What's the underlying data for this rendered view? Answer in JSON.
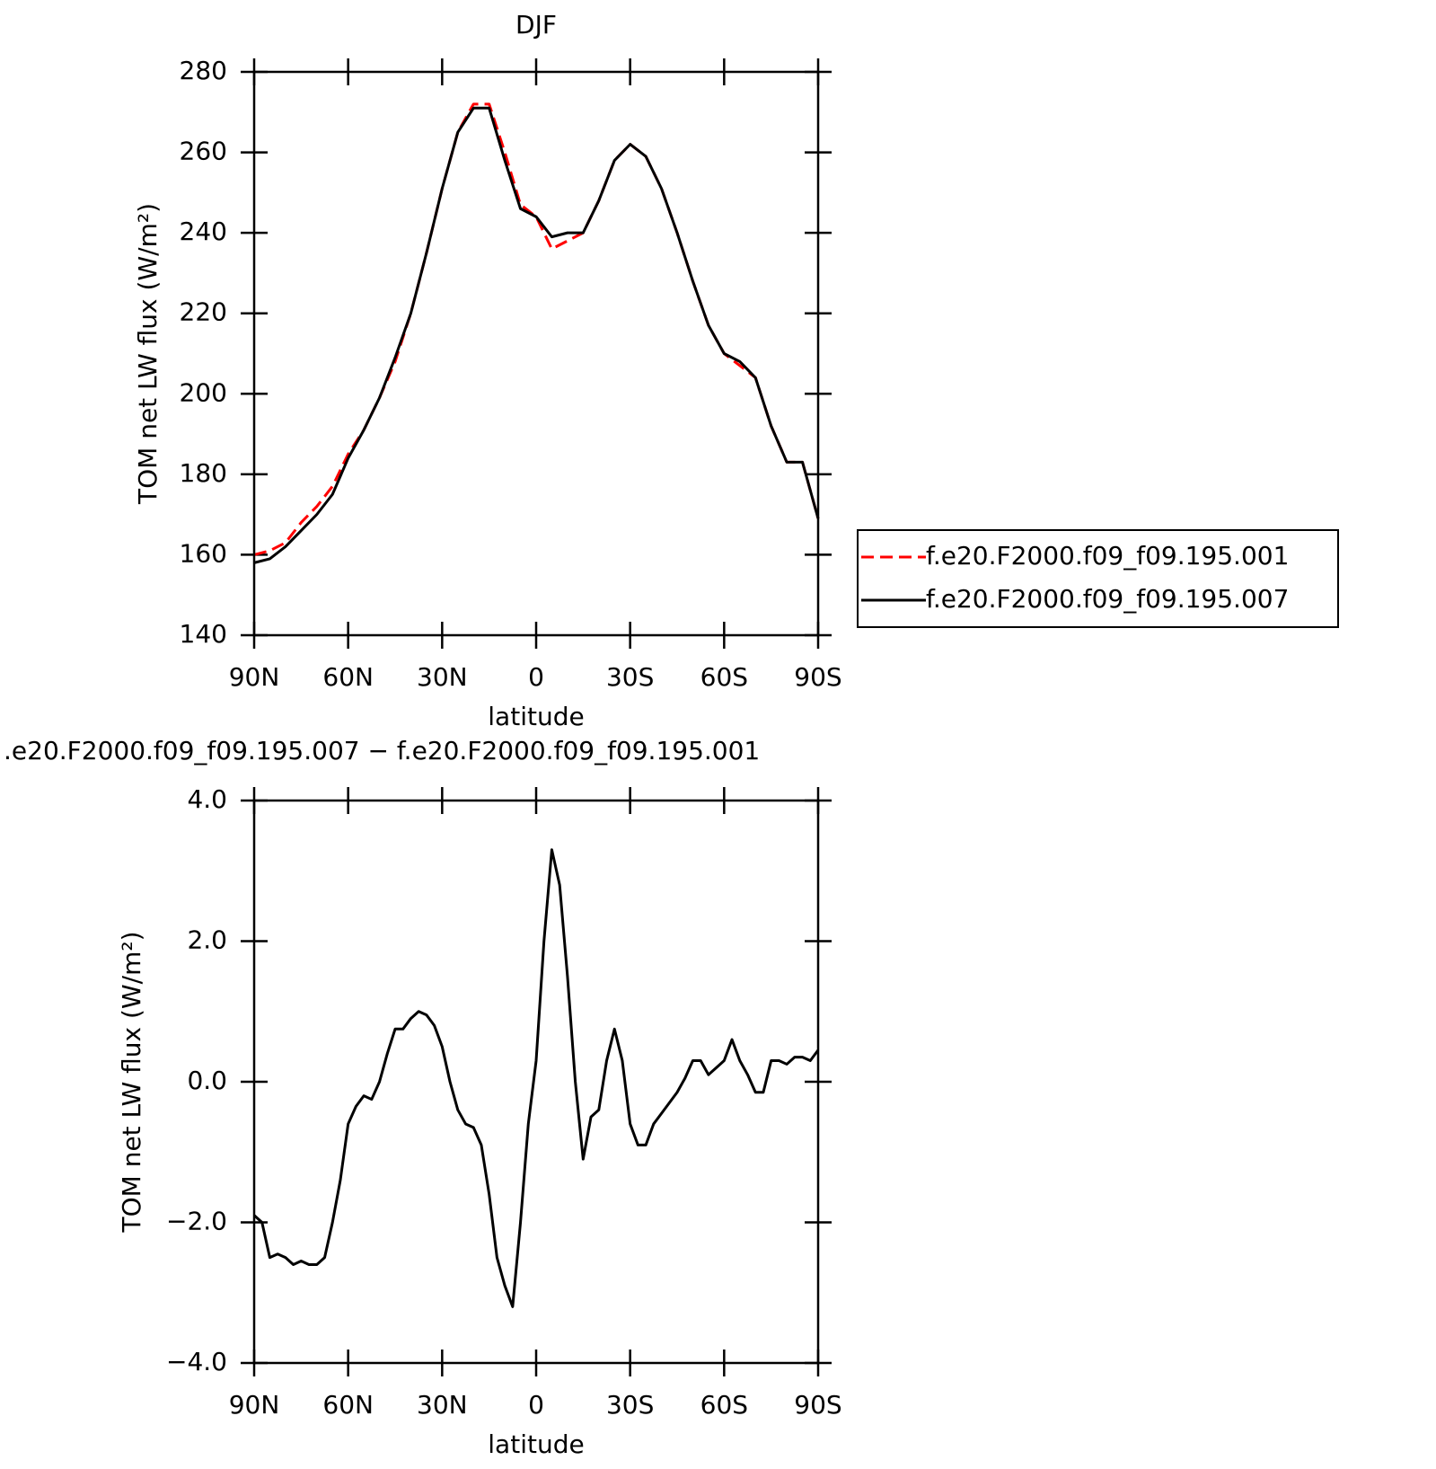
{
  "chart_data": [
    {
      "type": "line",
      "title": "DJF",
      "xlabel": "latitude",
      "ylabel": "TOM net LW flux (W/m²)",
      "x": [
        90,
        85,
        80,
        75,
        70,
        65,
        60,
        55,
        50,
        45,
        40,
        35,
        30,
        25,
        20,
        15,
        10,
        5,
        0,
        -5,
        -10,
        -15,
        -20,
        -25,
        -30,
        -35,
        -40,
        -45,
        -50,
        -55,
        -60,
        -65,
        -70,
        -75,
        -80,
        -85,
        -90
      ],
      "series": [
        {
          "name": "f.e20.F2000.f09_f09.195.001",
          "color": "#ff0000",
          "line_style": "dashed",
          "values": [
            160,
            161,
            163,
            168,
            172,
            177,
            185,
            191,
            199,
            208,
            220,
            235,
            251,
            265,
            272,
            272,
            260,
            247,
            244,
            236,
            238,
            240,
            248,
            258,
            262,
            259,
            251,
            240,
            228,
            217,
            210,
            207,
            204,
            192,
            183,
            183,
            169
          ]
        },
        {
          "name": "f.e20.F2000.f09_f09.195.007",
          "color": "#000000",
          "line_style": "solid",
          "values": [
            158,
            159,
            162,
            166,
            170,
            175,
            184,
            191,
            199,
            209,
            220,
            235,
            251,
            265,
            271,
            271,
            258,
            246,
            244,
            239,
            240,
            240,
            248,
            258,
            262,
            259,
            251,
            240,
            228,
            217,
            210,
            208,
            204,
            192,
            183,
            183,
            169
          ]
        }
      ],
      "xlim": [
        90,
        -90
      ],
      "xticks": [
        {
          "value": 90,
          "label": "90N"
        },
        {
          "value": 60,
          "label": "60N"
        },
        {
          "value": 30,
          "label": "30N"
        },
        0,
        {
          "value": -30,
          "label": "30S"
        },
        {
          "value": -60,
          "label": "60S"
        },
        {
          "value": -90,
          "label": "90S"
        }
      ],
      "ylim": [
        140,
        280
      ],
      "yticks": [
        140,
        160,
        180,
        200,
        220,
        240,
        260,
        280
      ],
      "legend": "right"
    },
    {
      "type": "line",
      "title": ".e20.F2000.f09_f09.195.007 − f.e20.F2000.f09_f09.195.001",
      "xlabel": "latitude",
      "ylabel": "TOM net LW flux (W/m²)",
      "x": [
        90,
        87.5,
        85,
        82.5,
        80,
        77.5,
        75,
        72.5,
        70,
        67.5,
        65,
        62.5,
        60,
        57.5,
        55,
        52.5,
        50,
        47.5,
        45,
        42.5,
        40,
        37.5,
        35,
        32.5,
        30,
        27.5,
        25,
        22.5,
        20,
        17.5,
        15,
        12.5,
        10,
        7.5,
        5,
        2.5,
        0,
        -2.5,
        -5,
        -7.5,
        -10,
        -12.5,
        -15,
        -17.5,
        -20,
        -22.5,
        -25,
        -27.5,
        -30,
        -32.5,
        -35,
        -37.5,
        -40,
        -42.5,
        -45,
        -47.5,
        -50,
        -52.5,
        -55,
        -57.5,
        -60,
        -62.5,
        -65,
        -67.5,
        -70,
        -72.5,
        -75,
        -77.5,
        -80,
        -82.5,
        -85,
        -87.5,
        -90
      ],
      "series": [
        {
          "name": "difference",
          "color": "#000000",
          "line_style": "solid",
          "values": [
            -1.9,
            -2.0,
            -2.5,
            -2.45,
            -2.5,
            -2.6,
            -2.55,
            -2.6,
            -2.6,
            -2.5,
            -2.0,
            -1.4,
            -0.6,
            -0.35,
            -0.2,
            -0.25,
            0.0,
            0.4,
            0.75,
            0.75,
            0.9,
            1.0,
            0.95,
            0.8,
            0.5,
            0.0,
            -0.4,
            -0.6,
            -0.65,
            -0.9,
            -1.6,
            -2.5,
            -2.9,
            -3.2,
            -2.0,
            -0.6,
            0.3,
            2.0,
            3.3,
            2.8,
            1.5,
            0.0,
            -1.1,
            -0.5,
            -0.4,
            0.3,
            0.75,
            0.3,
            -0.6,
            -0.9,
            -0.9,
            -0.6,
            -0.45,
            -0.3,
            -0.15,
            0.05,
            0.3,
            0.3,
            0.1,
            0.2,
            0.3,
            0.6,
            0.3,
            0.1,
            -0.15,
            -0.15,
            0.3,
            0.3,
            0.25,
            0.35,
            0.35,
            0.3,
            0.45
          ]
        }
      ],
      "xlim": [
        90,
        -90
      ],
      "xticks": [
        {
          "value": 90,
          "label": "90N"
        },
        {
          "value": 60,
          "label": "60N"
        },
        {
          "value": 30,
          "label": "30N"
        },
        0,
        {
          "value": -30,
          "label": "30S"
        },
        {
          "value": -60,
          "label": "60S"
        },
        {
          "value": -90,
          "label": "90S"
        }
      ],
      "ylim": [
        -4,
        4
      ],
      "yticks": [
        {
          "value": -4,
          "label": "−4.0"
        },
        {
          "value": -2,
          "label": "−2.0"
        },
        {
          "value": 0,
          "label": "0.0"
        },
        {
          "value": 2,
          "label": "2.0"
        },
        {
          "value": 4,
          "label": "4.0"
        }
      ]
    }
  ]
}
